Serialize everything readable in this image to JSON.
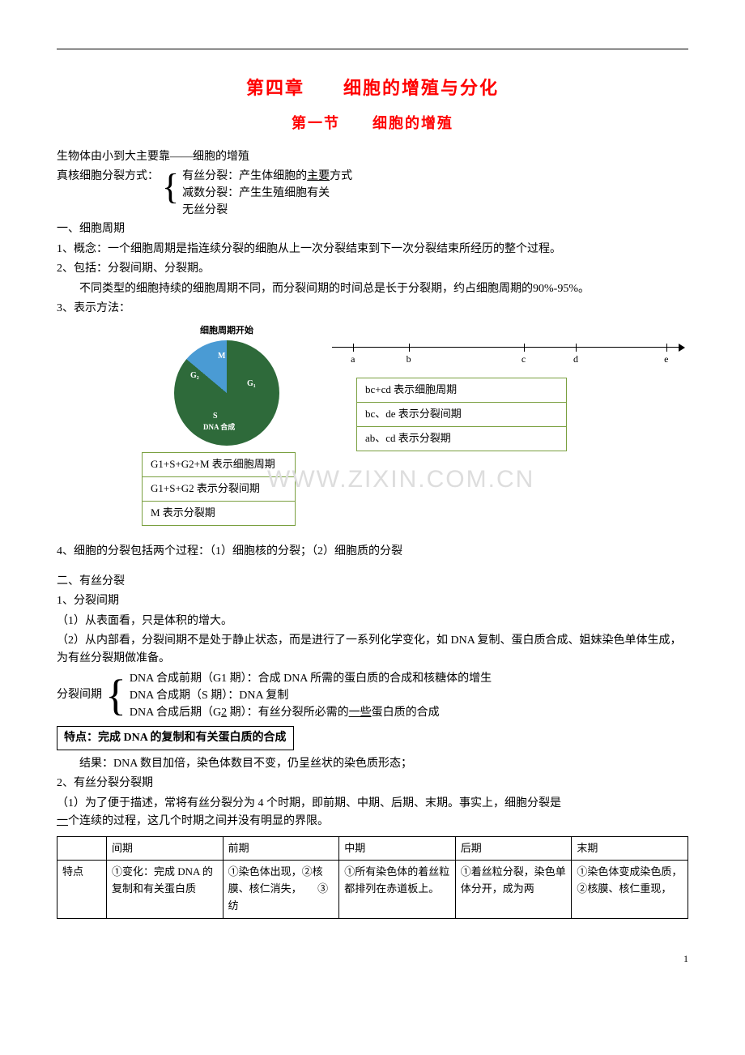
{
  "title": "第四章　　细胞的增殖与分化",
  "subtitle": "第一节　　细胞的增殖",
  "intro1": "生物体由小到大主要靠——细胞的增殖",
  "intro2_label": "真核细胞分裂方式：",
  "intro2_items": {
    "a": "有丝分裂：产生体细胞的",
    "a_u": "主要",
    "a_tail": "方式",
    "b": "减数分裂：产生生殖细胞有关",
    "c": "无丝分裂"
  },
  "sec1_h": "一、细胞周期",
  "sec1_p1": "1、概念：一个细胞周期是指连续分裂的细胞从上一次分裂结束到下一次分裂结束所经历的整个过程。",
  "sec1_p2": "2、包括：分裂间期、分裂期。",
  "sec1_p3": "不同类型的细胞持续的细胞周期不同，而分裂间期的时间总是长于分裂期，约占细胞周期的90%-95%。",
  "sec1_p4": "3、表示方法：",
  "pie": {
    "caption": "细胞周期开始",
    "dna_label": "DNA 合成",
    "slices": {
      "M": {
        "start": 270,
        "end": 310,
        "color": "#2e6a3a",
        "label": "M"
      },
      "G1": {
        "start": 310,
        "end": 90,
        "color": "#4a9bd4",
        "label": "G₁"
      },
      "S": {
        "start": 90,
        "end": 220,
        "color": "#1a5a8a",
        "label": "S"
      },
      "G2": {
        "start": 220,
        "end": 270,
        "color": "#3a7a4a",
        "label": "G₂"
      }
    }
  },
  "timeline_ticks": [
    "a",
    "b",
    "c",
    "d",
    "e"
  ],
  "timeline_pos": [
    6,
    22,
    55,
    70,
    96
  ],
  "right_boxes": [
    "bc+cd 表示细胞周期",
    "bc、de 表示分裂间期",
    "ab、cd 表示分裂期"
  ],
  "left_boxes": [
    "G1+S+G2+M 表示细胞周期",
    "G1+S+G2 表示分裂间期",
    "M 表示分裂期"
  ],
  "watermark": "WWW.ZIXIN.COM.CN",
  "sec1_p5": "4、细胞的分裂包括两个过程：（1）细胞核的分裂；（2）细胞质的分裂",
  "sec2_h": "二、有丝分裂",
  "sec2_p1": "1、分裂间期",
  "sec2_p2": "（1）从表面看，只是体积的增大。",
  "sec2_p3": "（2）从内部看，分裂间期不是处于静止状态，而是进行了一系列化学变化，如 DNA 复制、蛋白质合成、姐妹染色单体生成，为有丝分裂期做准备。",
  "phase_label": "分裂间期",
  "phase_items": {
    "a": "DNA 合成前期（G1 期）：合成 DNA 所需的蛋白质的合成和核糖体的增生",
    "b": "DNA 合成期（S 期）：DNA 复制",
    "c_pre": "DNA 合成后期（G",
    "c_u": "2",
    "c_mid": " 期）：有丝分裂所必需的",
    "c_u2": "一些",
    "c_tail": "蛋白质的合成"
  },
  "feature_box": "特点：完成 DNA 的复制和有关蛋白质的合成",
  "result": "结果：DNA 数目加倍，染色体数目不变，仍呈丝状的染色质形态；",
  "sec2_p4": "2、有丝分裂分裂期",
  "sec2_p5a": "（1）为了便于描述，常将有丝分裂分为 4 个时期，即前期、中期、后期、末期。事实上，细胞分裂是",
  "sec2_p5b_u": "一",
  "sec2_p5b_tail": "个连续的过程，这几个时期之间并没有明显的界限。",
  "table": {
    "headers": [
      "",
      "间期",
      "前期",
      "中期",
      "后期",
      "末期"
    ],
    "row_label": "特点",
    "cells": [
      "①变化：完成 DNA 的复制和有关蛋白质",
      "①染色体出现，②核膜、核仁消失，　　③纺",
      "①所有染色体的着丝粒都排列在赤道板上。",
      "①着丝粒分裂，染色单体分开，成为两",
      "①染色体变成染色质，　②核膜、核仁重现，"
    ]
  },
  "page_num": "1"
}
